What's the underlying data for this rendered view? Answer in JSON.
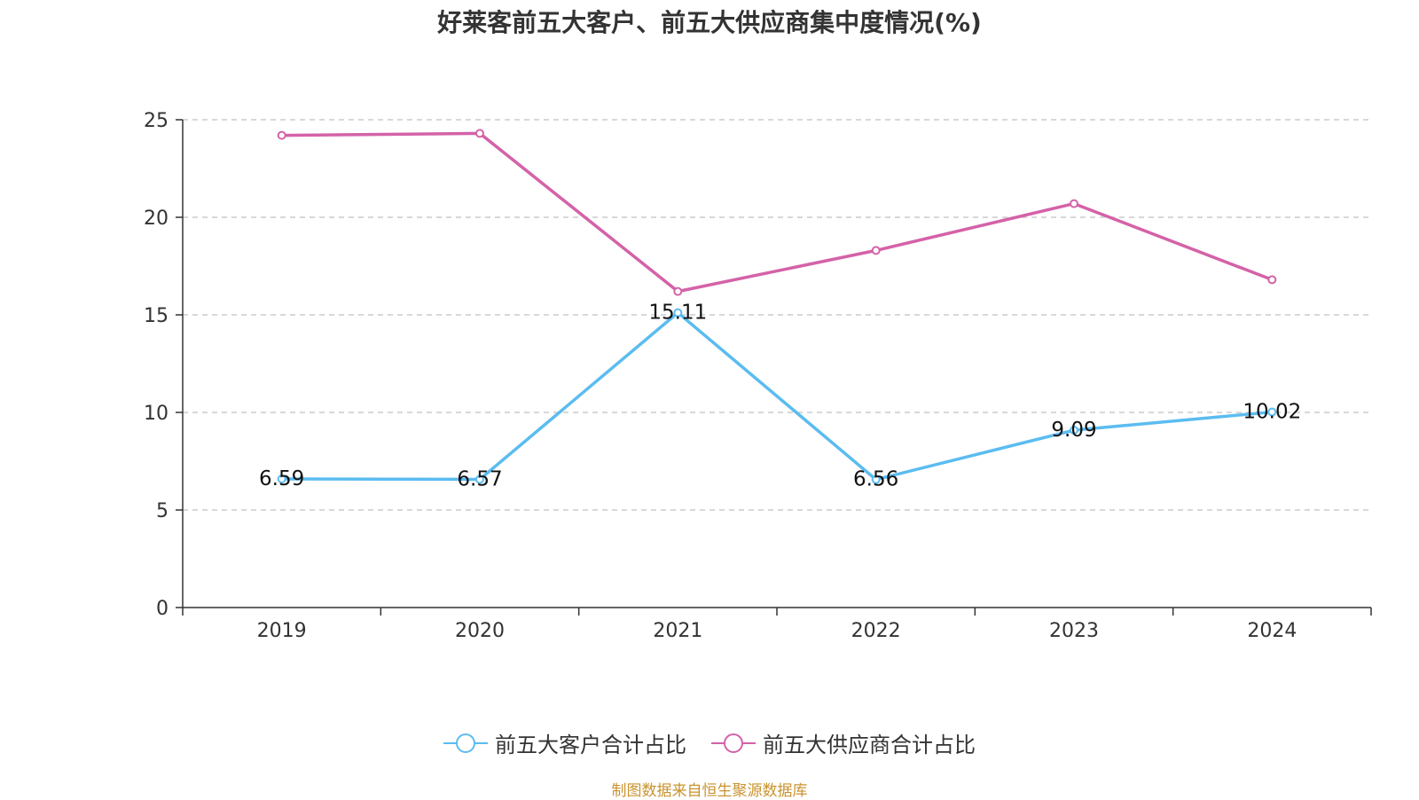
{
  "chart_data": {
    "type": "line",
    "title": "好莱客前五大客户、前五大供应商集中度情况(%)",
    "categories": [
      "2019",
      "2020",
      "2021",
      "2022",
      "2023",
      "2024"
    ],
    "ylim": [
      0,
      25
    ],
    "yticks": [
      0,
      5,
      10,
      15,
      20,
      25
    ],
    "grid": true,
    "legend_position": "bottom",
    "series": [
      {
        "name": "前五大客户合计占比",
        "color": "#5bbcf0",
        "values": [
          6.59,
          6.57,
          15.11,
          6.56,
          9.09,
          10.02
        ],
        "labels": [
          "6.59",
          "6.57",
          "15.11",
          "6.56",
          "9.09",
          "10.02"
        ]
      },
      {
        "name": "前五大供应商合计占比",
        "color": "#d462a8",
        "values": [
          24.2,
          24.3,
          16.2,
          18.3,
          20.7,
          16.8
        ],
        "labels": null
      }
    ]
  },
  "source_note": "制图数据来自恒生聚源数据库"
}
